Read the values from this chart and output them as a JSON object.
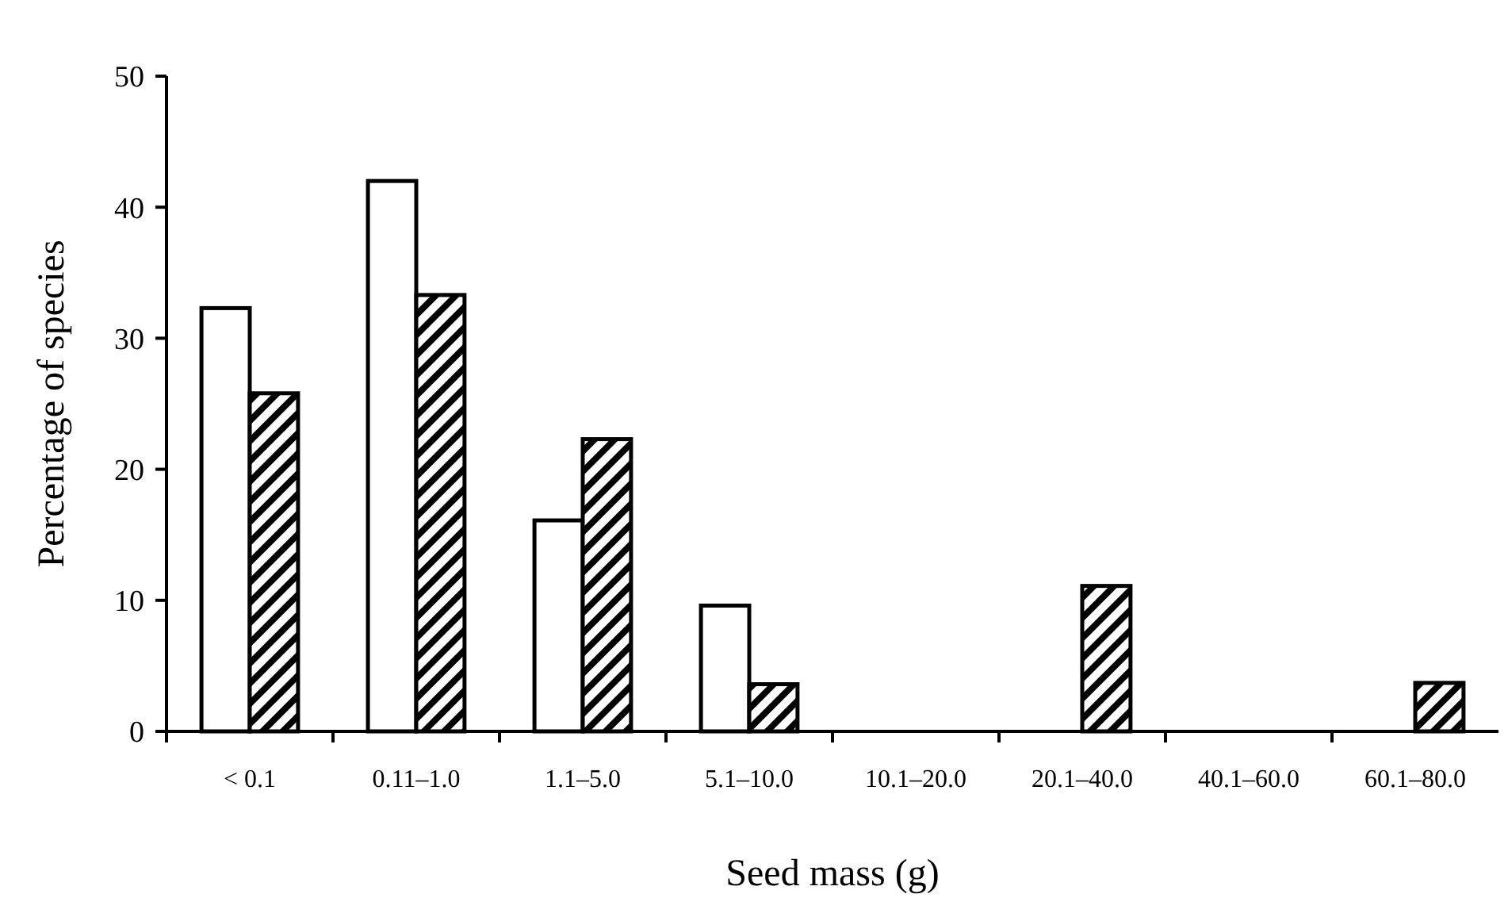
{
  "chart_data": {
    "type": "bar",
    "xlabel": "Seed mass (g)",
    "ylabel": "Percentage of species",
    "categories": [
      "< 0.1",
      "0.11–1.0",
      "1.1–5.0",
      "5.1–10.0",
      "10.1–20.0",
      "20.1–40.0",
      "40.1–60.0",
      "60.1–80.0"
    ],
    "series": [
      {
        "color": "#ffffff",
        "values": [
          32.3,
          42.0,
          16.1,
          9.6,
          null,
          null,
          null,
          null
        ]
      },
      {
        "color": "#000000",
        "values": [
          25.8,
          33.3,
          22.3,
          3.6,
          null,
          11.1,
          null,
          3.7
        ]
      }
    ],
    "ylim": [
      0,
      50
    ],
    "yticks": [
      0,
      10,
      20,
      30,
      40,
      50
    ]
  }
}
